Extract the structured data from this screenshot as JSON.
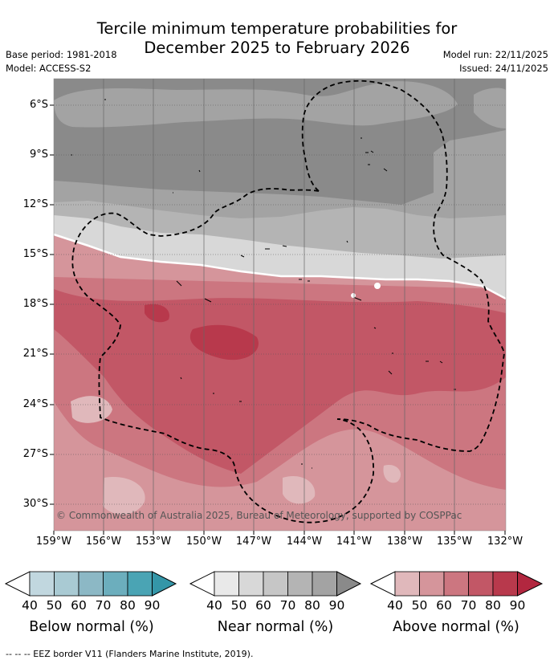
{
  "header": {
    "title_line1": "Tercile minimum temperature probabilities for",
    "title_line2": "December 2025 to February 2026",
    "base_period": "Base period: 1981-2018",
    "model": "Model: ACCESS-S2",
    "model_run": "Model run: 22/11/2025",
    "issued": "Issued: 24/11/2025"
  },
  "map": {
    "lat_labels": [
      "6°S",
      "9°S",
      "12°S",
      "15°S",
      "18°S",
      "21°S",
      "24°S",
      "27°S",
      "30°S"
    ],
    "lon_labels": [
      "159°W",
      "156°W",
      "153°W",
      "150°W",
      "147°W",
      "144°W",
      "141°W",
      "138°W",
      "135°W",
      "132°W"
    ],
    "copyright": "© Commonwealth of Australia 2025, Bureau of Meteorology, supported by COSPPac",
    "eez_boundary_style": "dashed"
  },
  "colorbars": [
    {
      "title": "Below normal (%)",
      "ticks": [
        "40",
        "50",
        "60",
        "70",
        "80",
        "90"
      ],
      "colors": [
        "#c1d7df",
        "#a9cad3",
        "#8cb8c5",
        "#6caebd",
        "#4aa4b4",
        "#3496a8"
      ]
    },
    {
      "title": "Near normal (%)",
      "ticks": [
        "40",
        "50",
        "60",
        "70",
        "80",
        "90"
      ],
      "colors": [
        "#e9e9e9",
        "#d8d8d8",
        "#c6c6c6",
        "#b4b4b4",
        "#a3a3a3",
        "#8a8a8a"
      ]
    },
    {
      "title": "Above normal (%)",
      "ticks": [
        "40",
        "50",
        "60",
        "70",
        "80",
        "90"
      ],
      "colors": [
        "#e0b8bb",
        "#d5959b",
        "#cc7680",
        "#c25766",
        "#b8394c",
        "#b2273f"
      ]
    }
  ],
  "legend_note": "--  --  -- EEZ border V11 (Flanders Marine Institute, 2019)."
}
